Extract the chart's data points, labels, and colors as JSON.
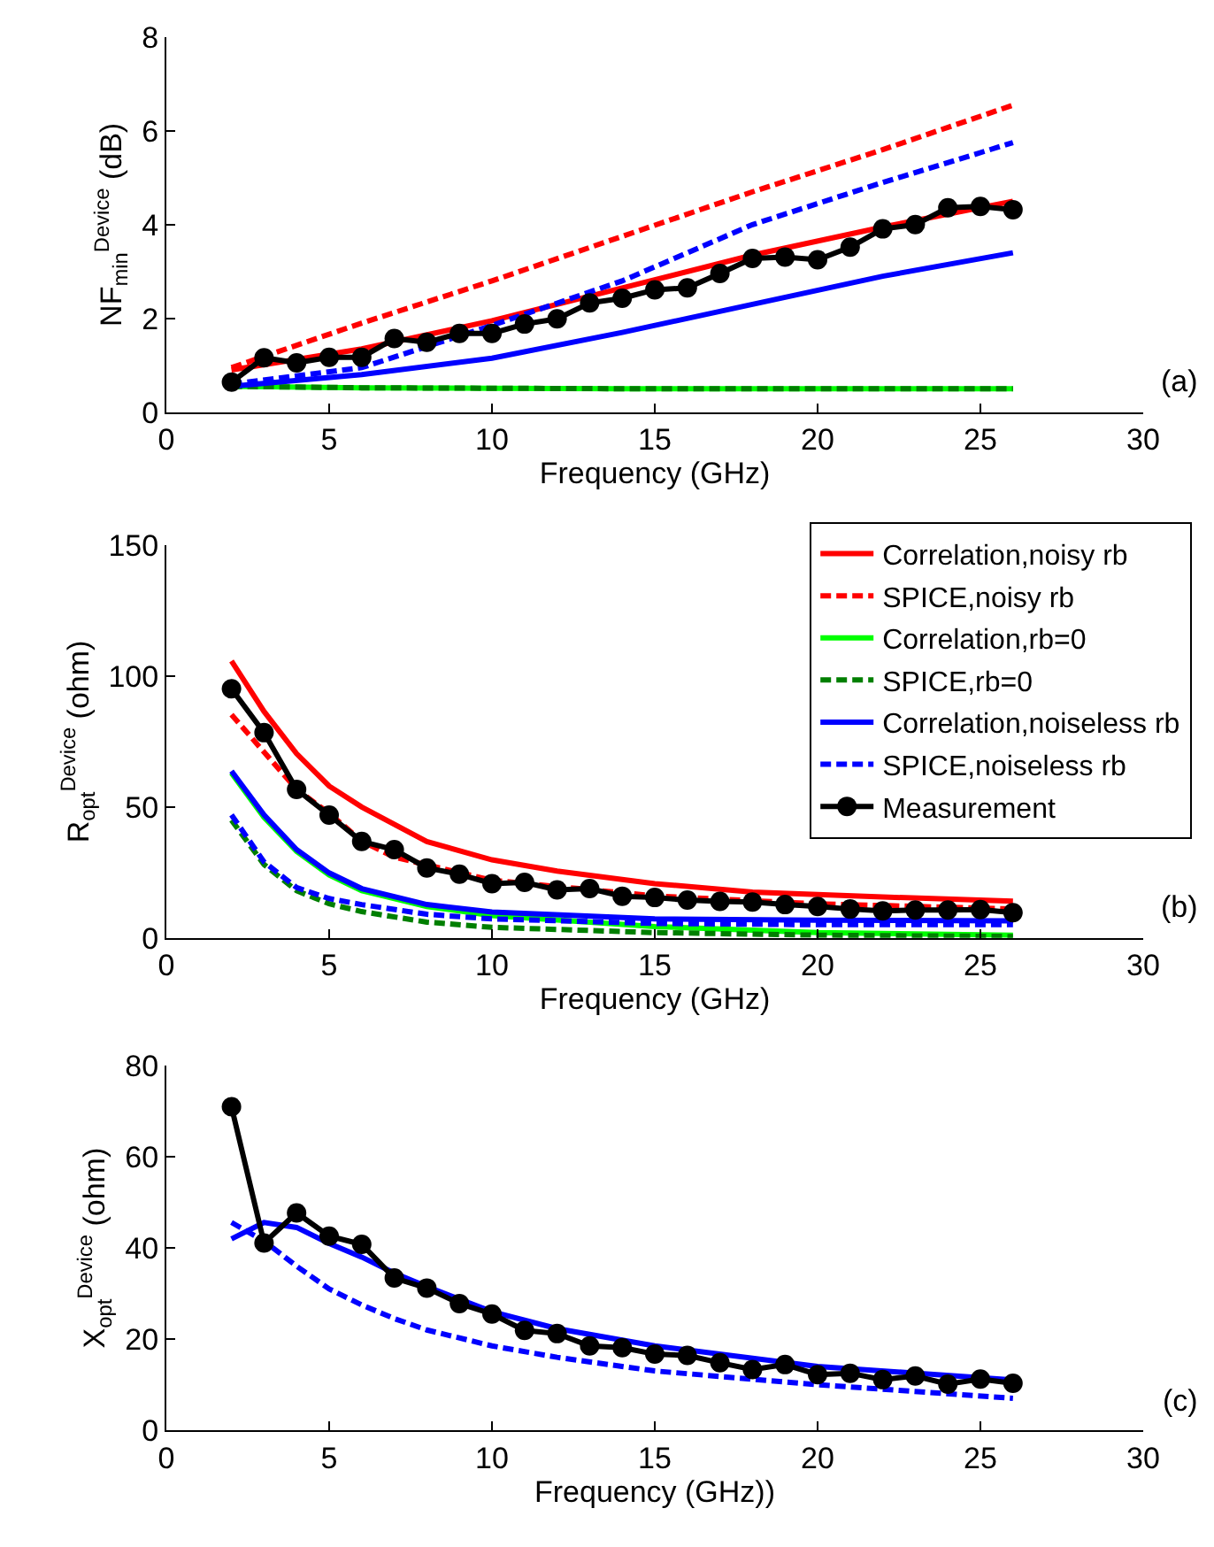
{
  "chart_data": [
    {
      "type": "line",
      "xlabel": "Frequency (GHz)",
      "ylabel": "NF$_{min}$$^{Device}$ (dB)",
      "annotations": [
        "(a)"
      ],
      "xlim": [
        0,
        30
      ],
      "xticks": [
        0,
        5,
        10,
        15,
        20,
        25,
        30
      ],
      "ylim": [
        0,
        8
      ],
      "yticks": [
        0,
        2,
        4,
        6,
        8
      ],
      "series": [
        {
          "color": "#ff0000",
          "line_style": "solid",
          "marker": "none",
          "x": [
            2,
            6,
            10,
            14,
            18,
            22,
            26
          ],
          "values": [
            0.9,
            1.35,
            1.95,
            2.65,
            3.35,
            3.95,
            4.5
          ]
        },
        {
          "color": "#ff0000",
          "line_style": "dashed",
          "marker": "none",
          "x": [
            2,
            6,
            10,
            14,
            18,
            22,
            26
          ],
          "values": [
            0.95,
            1.9,
            2.8,
            3.75,
            4.7,
            5.6,
            6.55
          ]
        },
        {
          "color": "#00ff00",
          "line_style": "solid",
          "marker": "none",
          "x": [
            2,
            6,
            10,
            14,
            18,
            22,
            26
          ],
          "values": [
            0.55,
            0.52,
            0.51,
            0.5,
            0.5,
            0.5,
            0.5
          ]
        },
        {
          "color": "#007f00",
          "line_style": "dashed",
          "marker": "none",
          "x": [
            2,
            6,
            10,
            14,
            18,
            22,
            26
          ],
          "values": [
            0.55,
            0.52,
            0.51,
            0.5,
            0.5,
            0.5,
            0.5
          ]
        },
        {
          "color": "#0000ff",
          "line_style": "solid",
          "marker": "none",
          "x": [
            2,
            6,
            10,
            14,
            18,
            22,
            26
          ],
          "values": [
            0.55,
            0.8,
            1.15,
            1.7,
            2.3,
            2.9,
            3.4
          ]
        },
        {
          "color": "#0000ff",
          "line_style": "dashed",
          "marker": "none",
          "x": [
            2,
            6,
            10,
            14,
            18,
            22,
            26
          ],
          "values": [
            0.6,
            0.95,
            1.85,
            2.8,
            4.0,
            4.9,
            5.75
          ]
        },
        {
          "color": "#000000",
          "line_style": "solid",
          "marker": "circle",
          "x": [
            2,
            3,
            4,
            5,
            6,
            7,
            8,
            9,
            10,
            11,
            12,
            13,
            14,
            15,
            16,
            17,
            18,
            19,
            20,
            21,
            22,
            23,
            24,
            25,
            26
          ],
          "values": [
            0.64,
            1.16,
            1.05,
            1.17,
            1.17,
            1.57,
            1.49,
            1.68,
            1.68,
            1.88,
            1.99,
            2.33,
            2.43,
            2.61,
            2.65,
            2.96,
            3.28,
            3.31,
            3.25,
            3.52,
            3.91,
            4.0,
            4.36,
            4.39,
            4.32
          ]
        }
      ]
    },
    {
      "type": "line",
      "xlabel": "Frequency (GHz)",
      "ylabel": "R$_{opt}$$^{Device}$ (ohm)",
      "annotations": [
        "(b)"
      ],
      "xlim": [
        0,
        30
      ],
      "xticks": [
        0,
        5,
        10,
        15,
        20,
        25,
        30
      ],
      "ylim": [
        0,
        150
      ],
      "yticks": [
        0,
        50,
        100,
        150
      ],
      "legend": "top right",
      "series": [
        {
          "name": "Correlation,noisy rb",
          "color": "#ff0000",
          "line_style": "solid",
          "marker": "none",
          "x": [
            2,
            3,
            4,
            5,
            6,
            8,
            10,
            12,
            15,
            18,
            22,
            26
          ],
          "values": [
            105.8,
            86.5,
            70.4,
            58,
            50,
            36.8,
            29.8,
            25.5,
            20.7,
            17.5,
            15.6,
            14
          ]
        },
        {
          "name": "SPICE,noisy rb",
          "color": "#ff0000",
          "line_style": "dashed",
          "marker": "none",
          "x": [
            2,
            3,
            4,
            5,
            6,
            7,
            10,
            15,
            20,
            26
          ],
          "values": [
            85.3,
            71,
            56.7,
            47.6,
            37,
            30.8,
            22,
            16,
            13,
            11
          ]
        },
        {
          "name": "Correlation,rb=0",
          "color": "#00ff00",
          "line_style": "solid",
          "marker": "none",
          "x": [
            2,
            3,
            4,
            5,
            6,
            8,
            10,
            15,
            20,
            26
          ],
          "values": [
            63,
            46,
            33,
            24,
            18,
            12,
            8.5,
            4.3,
            2,
            1
          ]
        },
        {
          "name": "SPICE,rb=0",
          "color": "#007f00",
          "line_style": "dashed",
          "marker": "none",
          "x": [
            2,
            3,
            4,
            5,
            6,
            8,
            10,
            15,
            20,
            26
          ],
          "values": [
            45,
            28,
            18,
            13,
            10,
            6,
            4,
            2,
            1,
            0.5
          ]
        },
        {
          "name": "Correlation,noiseless rb",
          "color": "#0000ff",
          "line_style": "solid",
          "marker": "none",
          "x": [
            2,
            3,
            4,
            5,
            6,
            8,
            10,
            15,
            20,
            26
          ],
          "values": [
            63.7,
            47,
            33.7,
            24.8,
            18.8,
            12.7,
            9.9,
            7.2,
            6.7,
            6.5
          ]
        },
        {
          "name": "SPICE,noiseless rb",
          "color": "#0000ff",
          "line_style": "dashed",
          "marker": "none",
          "x": [
            2,
            3,
            4,
            5,
            6,
            8,
            10,
            15,
            20,
            26
          ],
          "values": [
            47,
            29,
            19.2,
            15,
            12.7,
            9,
            7.2,
            5.5,
            5,
            5
          ]
        },
        {
          "name": "Measurement",
          "color": "#000000",
          "line_style": "solid",
          "marker": "circle",
          "x": [
            2,
            3,
            4,
            5,
            6,
            7,
            8,
            9,
            10,
            11,
            12,
            13,
            14,
            15,
            16,
            17,
            18,
            19,
            20,
            21,
            22,
            23,
            24,
            25,
            26
          ],
          "values": [
            95.2,
            78.4,
            56.7,
            46.9,
            36.8,
            33.7,
            26.7,
            24.3,
            20.7,
            21.2,
            18.3,
            18.8,
            15.9,
            15.4,
            14.4,
            13.9,
            13.7,
            12.7,
            12,
            11,
            10.3,
            10.6,
            10.6,
            10.8,
            9.6
          ]
        }
      ]
    },
    {
      "type": "line",
      "xlabel": "Frequency (GHz))",
      "ylabel": "X$_{opt}$$^{Device}$ (ohm)",
      "annotations": [
        "(c)"
      ],
      "xlim": [
        0,
        30
      ],
      "xticks": [
        0,
        5,
        10,
        15,
        20,
        25,
        30
      ],
      "ylim": [
        0,
        80
      ],
      "yticks": [
        0,
        20,
        40,
        60,
        80
      ],
      "series": [
        {
          "color": "#0000ff",
          "line_style": "solid",
          "marker": "none",
          "x": [
            2,
            3,
            4,
            5,
            6,
            7,
            8,
            10,
            12,
            15,
            20,
            26
          ],
          "values": [
            42,
            45.6,
            44.5,
            41,
            38,
            34.5,
            31.5,
            26,
            22.3,
            18.5,
            14,
            11
          ]
        },
        {
          "color": "#0000ff",
          "line_style": "dashed",
          "marker": "none",
          "x": [
            2,
            3,
            4,
            5,
            6,
            7,
            8,
            10,
            12,
            15,
            20,
            26
          ],
          "values": [
            45.6,
            41.5,
            36,
            31,
            27.5,
            24.5,
            22,
            18.5,
            16,
            13,
            10,
            7
          ]
        },
        {
          "color": "#000000",
          "line_style": "solid",
          "marker": "circle",
          "x": [
            2,
            3,
            4,
            5,
            6,
            7,
            8,
            9,
            10,
            11,
            12,
            13,
            14,
            15,
            16,
            17,
            18,
            19,
            20,
            21,
            22,
            23,
            24,
            25,
            26
          ],
          "values": [
            71,
            41.1,
            47.7,
            42.6,
            40.8,
            33.4,
            31.2,
            27.8,
            25.5,
            21.9,
            21.2,
            18.5,
            18.1,
            16.7,
            16.4,
            14.8,
            13.3,
            14.4,
            12.2,
            12.5,
            11.1,
            11.9,
            10.1,
            11.2,
            10.3
          ]
        }
      ]
    }
  ]
}
